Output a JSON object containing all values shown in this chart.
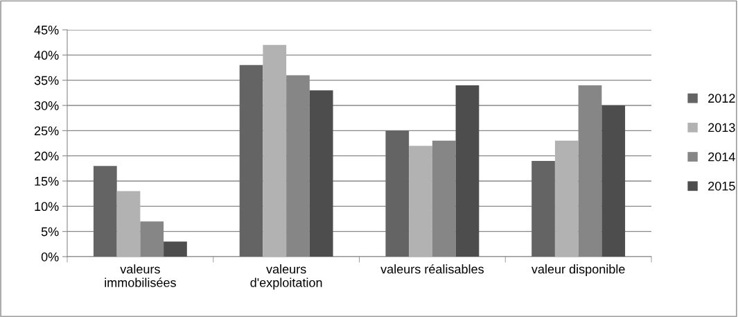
{
  "chart_data": {
    "type": "bar",
    "categories": [
      "valeurs\nimmobilisées",
      "valeurs\nd'exploitation",
      "valeurs réalisables",
      "valeur disponible"
    ],
    "series": [
      {
        "name": "2012",
        "color": "#646464",
        "values": [
          18,
          38,
          25,
          19
        ]
      },
      {
        "name": "2013",
        "color": "#b2b2b2",
        "values": [
          13,
          42,
          22,
          23
        ]
      },
      {
        "name": "2014",
        "color": "#868686",
        "values": [
          7,
          36,
          23,
          34
        ]
      },
      {
        "name": "2015",
        "color": "#4d4d4d",
        "values": [
          3,
          33,
          34,
          30
        ]
      }
    ],
    "ylim": [
      0,
      45
    ],
    "yticks": [
      {
        "value": 0,
        "label": "0%"
      },
      {
        "value": 5,
        "label": "5%"
      },
      {
        "value": 10,
        "label": "10%"
      },
      {
        "value": 15,
        "label": "15%"
      },
      {
        "value": 20,
        "label": "20%"
      },
      {
        "value": 25,
        "label": "25%"
      },
      {
        "value": 30,
        "label": "30%"
      },
      {
        "value": 35,
        "label": "35%"
      },
      {
        "value": 40,
        "label": "40%"
      },
      {
        "value": 45,
        "label": "45%"
      }
    ],
    "grid": "y",
    "legend": "right"
  }
}
